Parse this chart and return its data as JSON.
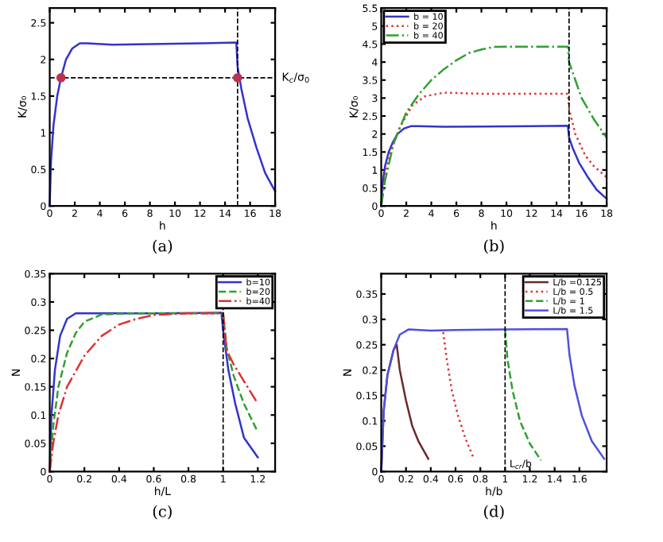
{
  "chart_data": [
    {
      "type": "line",
      "xlabel": "h",
      "ylabel": "K/σ₀",
      "xlim": [
        0,
        18
      ],
      "ylim": [
        0,
        2.7
      ],
      "xticks": [
        0,
        2,
        4,
        6,
        8,
        10,
        12,
        14,
        16,
        18
      ],
      "yticks": [
        0,
        0.5,
        1,
        1.5,
        2,
        2.5
      ],
      "grid": false,
      "legend": false,
      "annotations": [
        "(a)"
      ],
      "ref_lines": [
        {
          "axis": "y",
          "value": 1.75,
          "label": "K$_{c}$/σ$_{0}$",
          "line_style": "dashed",
          "color": "#000000"
        },
        {
          "axis": "x",
          "value": 15,
          "label": null,
          "line_style": "dashed",
          "color": "#000000"
        }
      ],
      "series": [
        {
          "type": "line",
          "color": "#3333cc",
          "line_style": "solid",
          "x": [
            0,
            0.1,
            0.3,
            0.6,
            0.9,
            1.3,
            1.8,
            2.4,
            3,
            5,
            8,
            12,
            14.9,
            15,
            15.3,
            15.8,
            16.5,
            17.2,
            18
          ],
          "values": [
            0,
            0.6,
            1.1,
            1.5,
            1.75,
            2.0,
            2.15,
            2.22,
            2.22,
            2.2,
            2.21,
            2.22,
            2.23,
            1.9,
            1.6,
            1.2,
            0.8,
            0.45,
            0.2
          ]
        },
        {
          "type": "scatter",
          "color": "#c03050",
          "marker": "circle",
          "x": [
            0.9,
            15
          ],
          "values": [
            1.75,
            1.75
          ]
        }
      ]
    },
    {
      "type": "line",
      "xlabel": "h",
      "ylabel": "K/σ₀",
      "xlim": [
        0,
        18
      ],
      "ylim": [
        0,
        5.5
      ],
      "xticks": [
        0,
        2,
        4,
        6,
        8,
        10,
        12,
        14,
        16,
        18
      ],
      "yticks": [
        0,
        0.5,
        1,
        1.5,
        2,
        2.5,
        3,
        3.5,
        4,
        4.5,
        5,
        5.5
      ],
      "grid": false,
      "legend": "top left",
      "annotations": [
        "(b)"
      ],
      "ref_lines": [
        {
          "axis": "x",
          "value": 15,
          "label": null,
          "line_style": "dashed",
          "color": "#000000"
        }
      ],
      "series": [
        {
          "name": "b = 10",
          "color": "#3333cc",
          "line_style": "solid",
          "x": [
            0,
            0.1,
            0.3,
            0.6,
            0.9,
            1.3,
            1.8,
            2.4,
            3,
            5,
            8,
            12,
            14.9,
            15,
            15.3,
            15.8,
            16.5,
            17.2,
            18
          ],
          "values": [
            0,
            0.6,
            1.1,
            1.5,
            1.75,
            2.0,
            2.15,
            2.22,
            2.22,
            2.2,
            2.21,
            2.22,
            2.23,
            1.9,
            1.6,
            1.2,
            0.8,
            0.45,
            0.2
          ]
        },
        {
          "name": "b = 20",
          "color": "#e03030",
          "line_style": "dotted",
          "x": [
            0,
            0.3,
            0.8,
            1.5,
            2.5,
            3.5,
            5,
            8,
            12,
            14.9,
            15,
            15.5,
            16.3,
            17,
            18
          ],
          "values": [
            0,
            0.85,
            1.55,
            2.2,
            2.8,
            3.05,
            3.15,
            3.12,
            3.12,
            3.12,
            2.7,
            2.0,
            1.4,
            1.1,
            0.8
          ]
        },
        {
          "name": "b = 40",
          "color": "#30a030",
          "line_style": "dashdot",
          "x": [
            0,
            0.3,
            1,
            2,
            3,
            4,
            5,
            6,
            7,
            8,
            9,
            10,
            14.9,
            15,
            15.5,
            16,
            17,
            18
          ],
          "values": [
            0,
            0.7,
            1.75,
            2.6,
            3.1,
            3.5,
            3.8,
            4.05,
            4.25,
            4.35,
            4.42,
            4.43,
            4.43,
            4.0,
            3.5,
            3.0,
            2.4,
            1.9
          ]
        }
      ]
    },
    {
      "type": "line",
      "xlabel": "h/L",
      "ylabel": "N",
      "xlim": [
        0,
        1.3
      ],
      "ylim": [
        0,
        0.35
      ],
      "xticks": [
        0,
        0.2,
        0.4,
        0.6,
        0.8,
        1,
        1.2
      ],
      "yticks": [
        0,
        0.05,
        0.1,
        0.15,
        0.2,
        0.25,
        0.3,
        0.35
      ],
      "grid": false,
      "legend": "top right",
      "annotations": [
        "(c)"
      ],
      "ref_lines": [
        {
          "axis": "x",
          "value": 1,
          "label": null,
          "line_style": "dashed",
          "color": "#000000"
        }
      ],
      "series": [
        {
          "name": "b=10",
          "color": "#3333cc",
          "line_style": "solid",
          "x": [
            0,
            0.01,
            0.03,
            0.06,
            0.1,
            0.15,
            0.3,
            0.6,
            0.99,
            1.0,
            1.03,
            1.07,
            1.12,
            1.2
          ],
          "values": [
            0,
            0.1,
            0.18,
            0.24,
            0.27,
            0.28,
            0.28,
            0.28,
            0.281,
            0.25,
            0.18,
            0.12,
            0.06,
            0.025
          ]
        },
        {
          "name": "b=20",
          "color": "#30a030",
          "line_style": "dashed",
          "x": [
            0,
            0.02,
            0.05,
            0.1,
            0.15,
            0.2,
            0.3,
            0.5,
            1.0,
            1.02,
            1.06,
            1.12,
            1.2
          ],
          "values": [
            0,
            0.08,
            0.15,
            0.21,
            0.245,
            0.265,
            0.278,
            0.28,
            0.28,
            0.22,
            0.17,
            0.12,
            0.07
          ]
        },
        {
          "name": "b=40",
          "color": "#e03030",
          "line_style": "dashdot",
          "x": [
            0,
            0.02,
            0.05,
            0.1,
            0.2,
            0.3,
            0.4,
            0.5,
            0.6,
            0.8,
            1.0,
            1.02,
            1.06,
            1.12,
            1.2
          ],
          "values": [
            0,
            0.05,
            0.1,
            0.15,
            0.205,
            0.24,
            0.26,
            0.27,
            0.277,
            0.28,
            0.28,
            0.215,
            0.19,
            0.16,
            0.12
          ]
        }
      ]
    },
    {
      "type": "line",
      "xlabel": "h/b",
      "ylabel": "N",
      "xlim": [
        0,
        1.82
      ],
      "ylim": [
        0,
        0.39
      ],
      "xticks": [
        0,
        0.2,
        0.4,
        0.6,
        0.8,
        1,
        1.2,
        1.4,
        1.6
      ],
      "yticks": [
        0,
        0.05,
        0.1,
        0.15,
        0.2,
        0.25,
        0.3,
        0.35
      ],
      "grid": false,
      "legend": "top right",
      "annotations": [
        "(d)"
      ],
      "ref_lines": [
        {
          "axis": "x",
          "value": 1,
          "label": "L$_{cr}$/b",
          "line_style": "dashed",
          "color": "#000000"
        }
      ],
      "series": [
        {
          "name": "L/b =0.125",
          "color": "#6a2a2a",
          "line_style": "solid",
          "x": [
            0,
            0.02,
            0.05,
            0.1,
            0.125,
            0.15,
            0.2,
            0.25,
            0.3,
            0.38
          ],
          "values": [
            0,
            0.12,
            0.19,
            0.24,
            0.25,
            0.2,
            0.14,
            0.09,
            0.06,
            0.025
          ]
        },
        {
          "name": "L/b = 0.5",
          "color": "#e03030",
          "line_style": "dotted",
          "x": [
            0.5,
            0.53,
            0.57,
            0.62,
            0.68,
            0.74
          ],
          "values": [
            0.275,
            0.22,
            0.16,
            0.11,
            0.065,
            0.03
          ]
        },
        {
          "name": "L/b = 1",
          "color": "#30a030",
          "line_style": "dashed",
          "x": [
            1.0,
            1.02,
            1.06,
            1.12,
            1.2,
            1.29
          ],
          "values": [
            0.28,
            0.22,
            0.16,
            0.1,
            0.055,
            0.022
          ]
        },
        {
          "name": "L/b = 1.5",
          "color": "#5050dd",
          "line_style": "solid",
          "x": [
            0,
            0.02,
            0.05,
            0.1,
            0.15,
            0.22,
            0.4,
            0.6,
            1.0,
            1.5,
            1.52,
            1.56,
            1.62,
            1.7,
            1.8
          ],
          "values": [
            0,
            0.12,
            0.19,
            0.24,
            0.27,
            0.28,
            0.278,
            0.279,
            0.28,
            0.281,
            0.23,
            0.17,
            0.11,
            0.06,
            0.025
          ]
        }
      ]
    }
  ]
}
